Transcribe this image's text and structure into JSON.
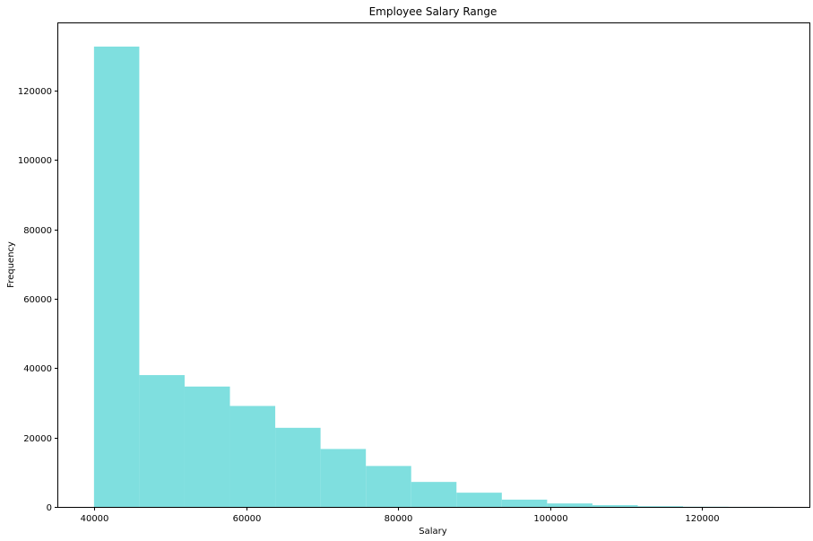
{
  "chart_data": {
    "type": "bar",
    "title": "Employee Salary Range",
    "xlabel": "Salary",
    "ylabel": "Frequency",
    "bar_color": "#7fdfdf",
    "bins": [
      {
        "start": 40000,
        "end": 45960,
        "value": 132700
      },
      {
        "start": 45960,
        "end": 51920,
        "value": 38000
      },
      {
        "start": 51920,
        "end": 57880,
        "value": 34700
      },
      {
        "start": 57880,
        "end": 63840,
        "value": 29100
      },
      {
        "start": 63840,
        "end": 69800,
        "value": 22800
      },
      {
        "start": 69800,
        "end": 75760,
        "value": 16700
      },
      {
        "start": 75760,
        "end": 81720,
        "value": 11800
      },
      {
        "start": 81720,
        "end": 87680,
        "value": 7200
      },
      {
        "start": 87680,
        "end": 93640,
        "value": 4100
      },
      {
        "start": 93640,
        "end": 99600,
        "value": 2100
      },
      {
        "start": 99600,
        "end": 105560,
        "value": 1000
      },
      {
        "start": 105560,
        "end": 111520,
        "value": 500
      },
      {
        "start": 111520,
        "end": 117480,
        "value": 200
      },
      {
        "start": 117480,
        "end": 123440,
        "value": 60
      },
      {
        "start": 123440,
        "end": 129400,
        "value": 20
      }
    ],
    "xlim": [
      35300,
      134100
    ],
    "ylim": [
      0,
      139400
    ],
    "xticks": [
      40000,
      60000,
      80000,
      100000,
      120000
    ],
    "xtick_labels": [
      "40000",
      "60000",
      "80000",
      "100000",
      "120000"
    ],
    "yticks": [
      0,
      20000,
      40000,
      60000,
      80000,
      100000,
      120000
    ],
    "ytick_labels": [
      "0",
      "20000",
      "40000",
      "60000",
      "80000",
      "100000",
      "120000"
    ],
    "grid": false,
    "legend": null
  }
}
